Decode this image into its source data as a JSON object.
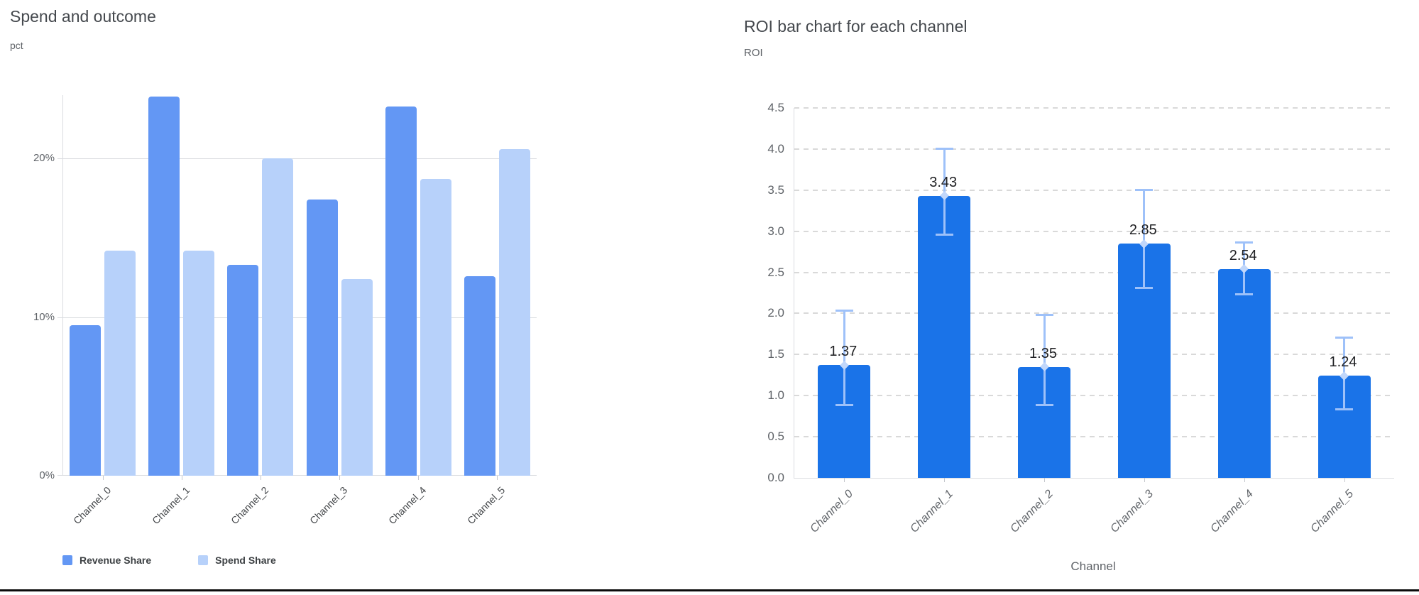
{
  "colors": {
    "revenue_bar": "#6397f4",
    "spend_bar": "#b7d1fa",
    "roi_bar": "#1a73e8",
    "error_bar": "#9ec1f9",
    "error_marker": "#c1d7fb",
    "solid_grid": "#dadce0",
    "dashed_grid": "#d9d9d9",
    "axis_text": "#5f6368",
    "title_text": "#45494e",
    "data_label_text": "#202124"
  },
  "chart_data": [
    {
      "id": "spend_outcome",
      "type": "bar",
      "title": "Spend and outcome",
      "ylabel": "pct",
      "xlabel": "",
      "categories": [
        "Channel_0",
        "Channel_1",
        "Channel_2",
        "Channel_3",
        "Channel_4",
        "Channel_5"
      ],
      "series": [
        {
          "name": "Revenue Share",
          "color": "#6397f4",
          "values": [
            9.5,
            23.9,
            13.3,
            17.4,
            23.3,
            12.6
          ]
        },
        {
          "name": "Spend Share",
          "color": "#b7d1fa",
          "values": [
            14.2,
            14.2,
            20.0,
            12.4,
            18.7,
            20.6
          ]
        }
      ],
      "ylim": [
        0,
        24
      ],
      "yticks": [
        {
          "value": 0,
          "label": "0%"
        },
        {
          "value": 10,
          "label": "10%"
        },
        {
          "value": 20,
          "label": "20%"
        }
      ],
      "grid": "solid-horizontal",
      "legend_position": "bottom"
    },
    {
      "id": "roi_by_channel",
      "type": "bar",
      "title": "ROI bar chart for each channel",
      "ylabel": "ROI",
      "xlabel": "Channel",
      "categories": [
        "Channel_0",
        "Channel_1",
        "Channel_2",
        "Channel_3",
        "Channel_4",
        "Channel_5"
      ],
      "values": [
        1.37,
        3.43,
        1.35,
        2.85,
        2.54,
        1.24
      ],
      "data_labels": [
        "1.37",
        "3.43",
        "1.35",
        "2.85",
        "2.54",
        "1.24"
      ],
      "error_bars": {
        "low": [
          0.88,
          2.95,
          0.88,
          2.31,
          2.23,
          0.83
        ],
        "high": [
          2.04,
          4.01,
          1.99,
          3.51,
          2.87,
          1.71
        ]
      },
      "ylim": [
        0,
        4.5
      ],
      "yticks": [
        {
          "value": 0.0,
          "label": "0.0"
        },
        {
          "value": 0.5,
          "label": "0.5"
        },
        {
          "value": 1.0,
          "label": "1.0"
        },
        {
          "value": 1.5,
          "label": "1.5"
        },
        {
          "value": 2.0,
          "label": "2.0"
        },
        {
          "value": 2.5,
          "label": "2.5"
        },
        {
          "value": 3.0,
          "label": "3.0"
        },
        {
          "value": 3.5,
          "label": "3.5"
        },
        {
          "value": 4.0,
          "label": "4.0"
        },
        {
          "value": 4.5,
          "label": "4.5"
        }
      ],
      "grid": "dashed-horizontal",
      "legend_position": "none"
    }
  ]
}
